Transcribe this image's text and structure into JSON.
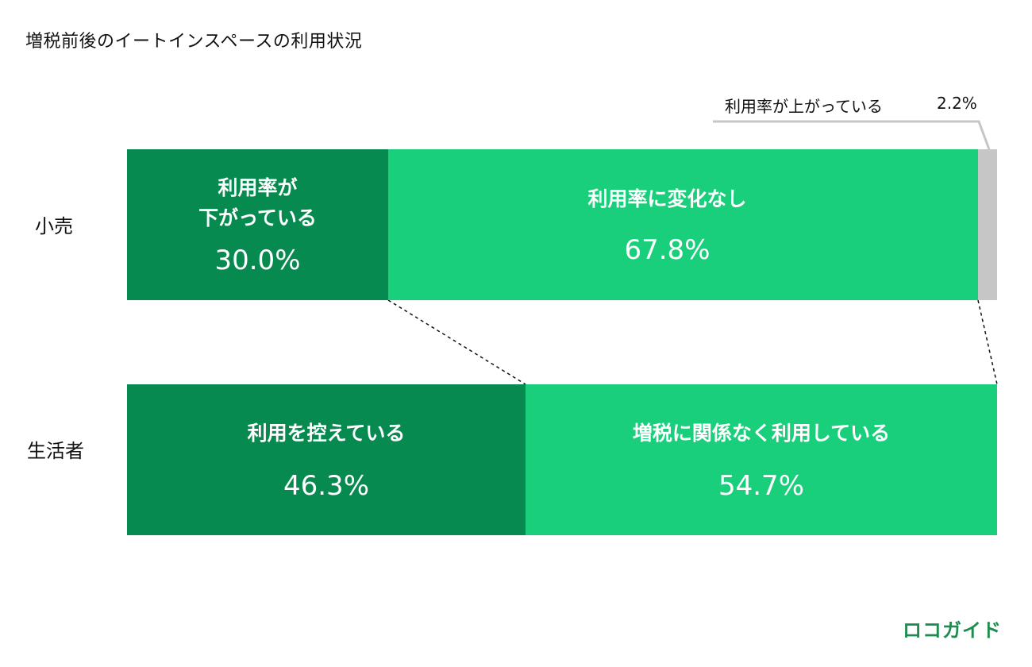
{
  "title": "増税前後のイートインスペースの利用状況",
  "chart_data": {
    "type": "bar",
    "orientation": "horizontal-stacked",
    "categories": [
      "小売",
      "生活者"
    ],
    "groups": [
      {
        "category": "小売",
        "segments": [
          {
            "label": "利用率が\n下がっている",
            "value": 30.0,
            "display": "30.0%",
            "color": "#078a4f"
          },
          {
            "label": "利用率に変化なし",
            "value": 67.8,
            "display": "67.8%",
            "color": "#1acf7c"
          },
          {
            "label": "利用率が上がっている",
            "value": 2.2,
            "display": "2.2%",
            "color": "#c6c6c6"
          }
        ]
      },
      {
        "category": "生活者",
        "segments": [
          {
            "label": "利用を控えている",
            "value": 46.3,
            "display": "46.3%",
            "color": "#078a4f"
          },
          {
            "label": "増税に関係なく利用している",
            "value": 54.7,
            "display": "54.7%",
            "color": "#1acf7c"
          }
        ]
      }
    ]
  },
  "logo": "ロコガイド"
}
